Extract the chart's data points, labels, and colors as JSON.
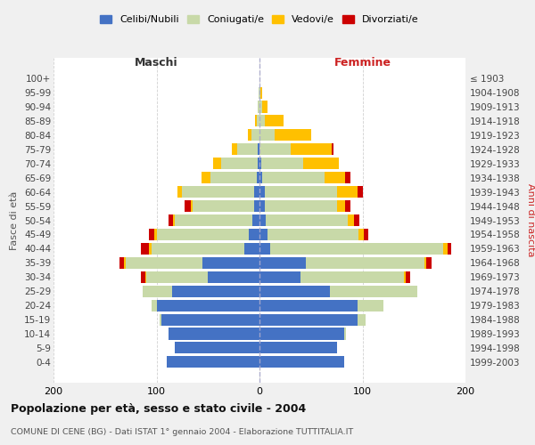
{
  "age_groups": [
    "0-4",
    "5-9",
    "10-14",
    "15-19",
    "20-24",
    "25-29",
    "30-34",
    "35-39",
    "40-44",
    "45-49",
    "50-54",
    "55-59",
    "60-64",
    "65-69",
    "70-74",
    "75-79",
    "80-84",
    "85-89",
    "90-94",
    "95-99",
    "100+"
  ],
  "birth_years": [
    "1999-2003",
    "1994-1998",
    "1989-1993",
    "1984-1988",
    "1979-1983",
    "1974-1978",
    "1969-1973",
    "1964-1968",
    "1959-1963",
    "1954-1958",
    "1949-1953",
    "1944-1948",
    "1939-1943",
    "1934-1938",
    "1929-1933",
    "1924-1928",
    "1919-1923",
    "1914-1918",
    "1909-1913",
    "1904-1908",
    "≤ 1903"
  ],
  "maschi": {
    "celibi": [
      90,
      82,
      88,
      95,
      100,
      85,
      50,
      55,
      15,
      10,
      7,
      5,
      5,
      3,
      2,
      2,
      0,
      0,
      0,
      0,
      0
    ],
    "coniugati": [
      0,
      0,
      0,
      2,
      5,
      28,
      60,
      75,
      90,
      90,
      75,
      60,
      70,
      45,
      35,
      20,
      8,
      3,
      2,
      1,
      0
    ],
    "vedovi": [
      0,
      0,
      0,
      0,
      0,
      0,
      1,
      2,
      2,
      2,
      2,
      2,
      5,
      8,
      8,
      5,
      3,
      1,
      0,
      0,
      0
    ],
    "divorziati": [
      0,
      0,
      0,
      0,
      0,
      0,
      4,
      4,
      8,
      5,
      4,
      6,
      0,
      0,
      0,
      0,
      0,
      0,
      0,
      0,
      0
    ]
  },
  "femmine": {
    "nubili": [
      82,
      75,
      82,
      95,
      95,
      68,
      40,
      45,
      10,
      8,
      6,
      5,
      5,
      3,
      2,
      0,
      0,
      0,
      0,
      0,
      0
    ],
    "coniugate": [
      0,
      0,
      2,
      8,
      25,
      85,
      100,
      115,
      168,
      88,
      80,
      70,
      70,
      60,
      40,
      30,
      15,
      5,
      3,
      1,
      0
    ],
    "vedove": [
      0,
      0,
      0,
      0,
      0,
      0,
      2,
      2,
      5,
      5,
      6,
      8,
      20,
      20,
      35,
      40,
      35,
      18,
      5,
      2,
      0
    ],
    "divorziate": [
      0,
      0,
      0,
      0,
      0,
      0,
      4,
      5,
      3,
      5,
      5,
      5,
      5,
      5,
      0,
      2,
      0,
      0,
      0,
      0,
      0
    ]
  },
  "colors": {
    "celibi": "#4472c4",
    "coniugati": "#c8d9a8",
    "vedovi": "#ffc000",
    "divorziati": "#cc0000"
  },
  "title": "Popolazione per età, sesso e stato civile - 2004",
  "subtitle": "COMUNE DI CENE (BG) - Dati ISTAT 1° gennaio 2004 - Elaborazione TUTTITALIA.IT",
  "xlabel_left": "Maschi",
  "xlabel_right": "Femmine",
  "ylabel_left": "Fasce di età",
  "ylabel_right": "Anni di nascita",
  "xlim": 200,
  "bg_color": "#f0f0f0",
  "plot_bg": "#ffffff"
}
